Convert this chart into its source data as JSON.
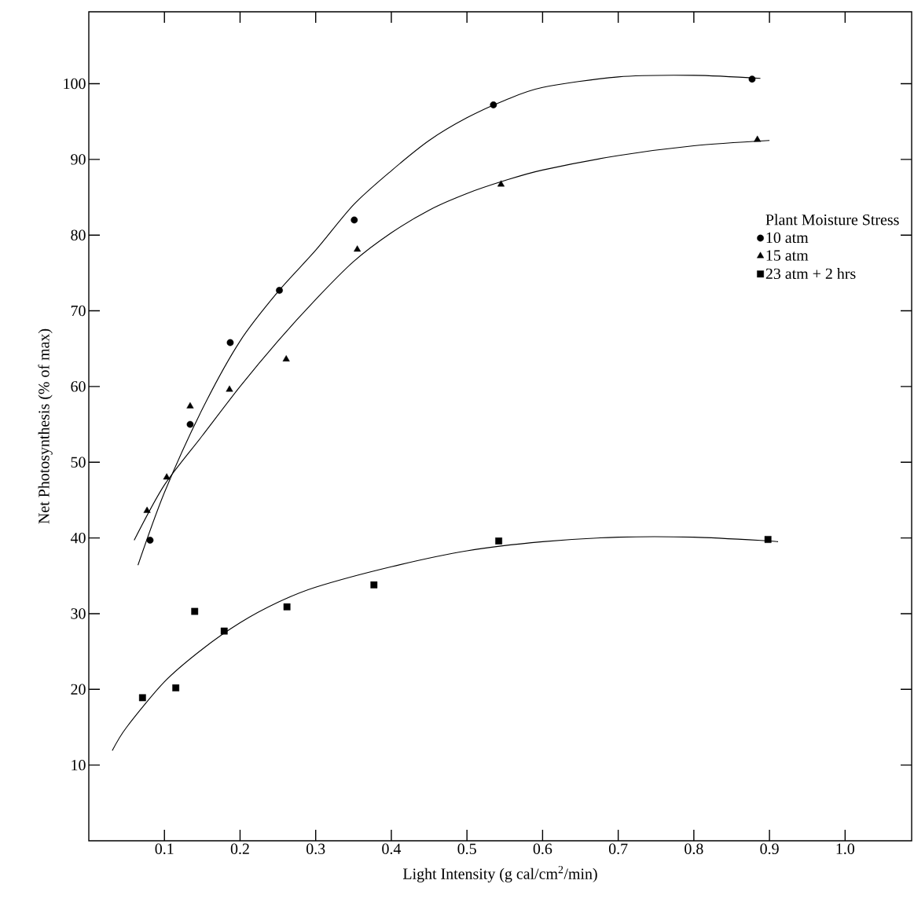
{
  "chart_data": {
    "type": "scatter",
    "xlabel": "Light Intensity (g cal/cm$^{2}$/min)",
    "ylabel": "Net Photosynthesis (% of max)",
    "legend_title": "Plant Moisture Stress",
    "legend": "top right",
    "grid": false,
    "xlim": [
      0,
      1.088
    ],
    "ylim": [
      0,
      109.5
    ],
    "xticks": [
      {
        "value": 0.1,
        "label": "0.1"
      },
      {
        "value": 0.2,
        "label": "0.2"
      },
      {
        "value": 0.3,
        "label": "0.3"
      },
      {
        "value": 0.4,
        "label": "0.4"
      },
      {
        "value": 0.5,
        "label": "0.5"
      },
      {
        "value": 0.6,
        "label": "0.6"
      },
      {
        "value": 0.7,
        "label": "0.7"
      },
      {
        "value": 0.8,
        "label": "0.8"
      },
      {
        "value": 0.9,
        "label": "0.9"
      },
      {
        "value": 1,
        "label": "1.0"
      }
    ],
    "yticks": [
      10,
      20,
      30,
      40,
      50,
      60,
      70,
      80,
      90,
      100
    ],
    "series": [
      {
        "name": "10 atm",
        "marker": "circle",
        "color": "#000000",
        "x": [
          0.081,
          0.134,
          0.187,
          0.252,
          0.351,
          0.535,
          0.877
        ],
        "values": [
          39.7,
          55.0,
          65.8,
          72.7,
          82.0,
          97.2,
          100.6
        ]
      },
      {
        "name": "15 atm",
        "marker": "triangle",
        "color": "#000000",
        "x": [
          0.077,
          0.103,
          0.134,
          0.186,
          0.261,
          0.355,
          0.545,
          0.884
        ],
        "values": [
          43.6,
          48.0,
          57.4,
          59.6,
          63.6,
          78.1,
          86.7,
          92.6
        ]
      },
      {
        "name": "23 atm + 2 hrs",
        "marker": "square",
        "color": "#000000",
        "x": [
          0.071,
          0.115,
          0.14,
          0.179,
          0.262,
          0.377,
          0.542,
          0.898
        ],
        "values": [
          18.9,
          20.2,
          30.3,
          27.7,
          30.9,
          33.8,
          39.6,
          39.8
        ]
      },
      {
        "type": "line",
        "marker": "none",
        "color": "#000000",
        "x": [
          0.065,
          0.1,
          0.15,
          0.2,
          0.25,
          0.3,
          0.35,
          0.4,
          0.45,
          0.5,
          0.55,
          0.6,
          0.7,
          0.8,
          0.888
        ],
        "values": [
          36.4,
          46,
          57,
          66,
          72.5,
          78,
          84,
          88.5,
          92.5,
          95.5,
          97.8,
          99.5,
          100.9,
          101.1,
          100.7
        ]
      },
      {
        "type": "line",
        "marker": "none",
        "color": "#000000",
        "x": [
          0.06,
          0.1,
          0.15,
          0.2,
          0.25,
          0.3,
          0.35,
          0.4,
          0.45,
          0.5,
          0.55,
          0.6,
          0.7,
          0.8,
          0.9
        ],
        "values": [
          39.7,
          47,
          53.5,
          60,
          66,
          71.5,
          76.5,
          80.3,
          83.3,
          85.5,
          87.2,
          88.6,
          90.5,
          91.8,
          92.5
        ]
      },
      {
        "type": "line",
        "marker": "none",
        "color": "#000000",
        "x": [
          0.031,
          0.05,
          0.1,
          0.15,
          0.2,
          0.25,
          0.3,
          0.4,
          0.5,
          0.6,
          0.7,
          0.8,
          0.9,
          0.91
        ],
        "values": [
          11.9,
          15,
          21,
          25.3,
          28.8,
          31.5,
          33.5,
          36.2,
          38.3,
          39.5,
          40.1,
          40.1,
          39.6,
          39.5
        ]
      }
    ]
  }
}
